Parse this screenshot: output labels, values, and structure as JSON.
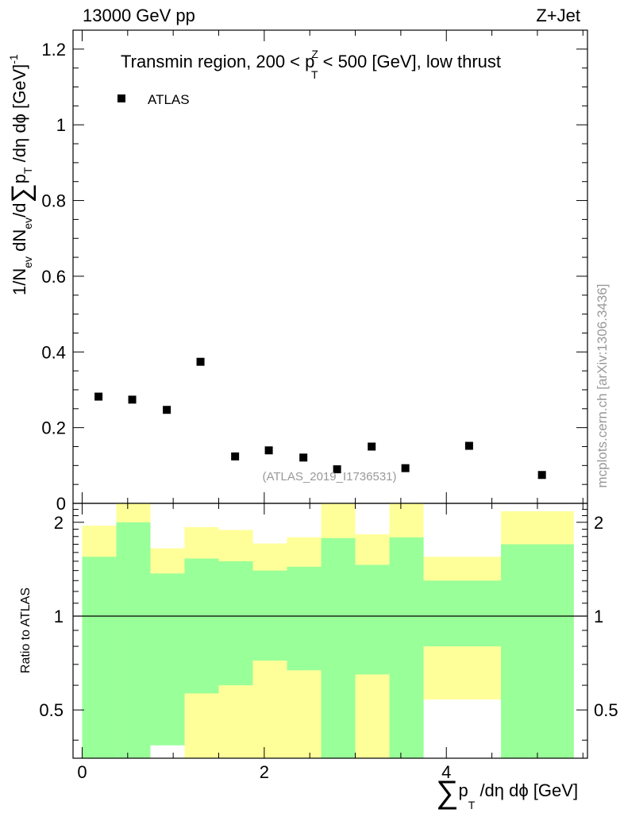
{
  "header": {
    "left": "13000 GeV pp",
    "right": "Z+Jet"
  },
  "watermark": "mcplots.cern.ch [arXiv:1306.3436]",
  "analysis_label": "(ATLAS_2019_I1736531)",
  "colors": {
    "data_marker": "#000000",
    "band_inner": "#99ff99",
    "band_outer": "#ffff99",
    "axis": "#000000",
    "analysis_label": "#999999"
  },
  "chart_data": [
    {
      "type": "scatter",
      "title_parts": {
        "prefix": "Transmin region, 200 < p",
        "sup": "Z",
        "sub": "T",
        "suffix": " < 500 [GeV], low thrust"
      },
      "ylabel_parts": {
        "a": "1/N",
        "a_sub": "ev",
        "b": " dN",
        "b_sub": "ev",
        "c": "/d",
        "sigma": "∑",
        "d": "p",
        "d_sub": "T",
        "e": " /dη dϕ  [GeV]",
        "e_sup": "-1"
      },
      "legend": {
        "entries": [
          "ATLAS"
        ],
        "placement": "top-left"
      },
      "xlim": [
        -0.1,
        5.55
      ],
      "ylim": [
        0,
        1.25
      ],
      "yticks": [
        0,
        0.2,
        0.4,
        0.6,
        0.8,
        1,
        1.2
      ],
      "ytick_labels": [
        "0",
        "0.2",
        "0.4",
        "0.6",
        "0.8",
        "1",
        "1.2"
      ],
      "series": [
        {
          "name": "ATLAS",
          "marker": "square",
          "x": [
            0.18,
            0.55,
            0.93,
            1.3,
            1.68,
            2.05,
            2.43,
            2.8,
            3.18,
            3.55,
            4.25,
            5.05
          ],
          "y": [
            0.282,
            0.274,
            0.247,
            0.374,
            0.124,
            0.14,
            0.121,
            0.09,
            0.15,
            0.093,
            0.152,
            0.075
          ]
        }
      ]
    },
    {
      "type": "area",
      "ylabel": "Ratio to ATLAS",
      "xlim": [
        -0.1,
        5.55
      ],
      "ylim": [
        0.35,
        2.3
      ],
      "yticks": [
        0.5,
        1,
        2
      ],
      "ytick_labels": [
        "0.5",
        "1",
        "2"
      ],
      "xticks": [
        0,
        2,
        4
      ],
      "xtick_labels": [
        "0",
        "2",
        "4"
      ],
      "xlabel_parts": {
        "sigma": "∑",
        "a": "p",
        "a_sub": "T",
        "b": " /dη dϕ [GeV]"
      },
      "reference_line": 1,
      "bins": [
        {
          "lo": 0.0,
          "hi": 0.375,
          "inner": [
            0.35,
            1.55
          ],
          "outer": [
            0.53,
            1.95
          ]
        },
        {
          "lo": 0.375,
          "hi": 0.75,
          "inner": [
            0.35,
            2.0
          ],
          "outer": [
            0.35,
            2.3
          ]
        },
        {
          "lo": 0.75,
          "hi": 1.125,
          "inner": [
            0.385,
            1.37
          ],
          "outer": [
            0.76,
            1.65
          ]
        },
        {
          "lo": 1.125,
          "hi": 1.5,
          "inner": [
            0.565,
            1.53
          ],
          "outer": [
            0.35,
            1.93
          ]
        },
        {
          "lo": 1.5,
          "hi": 1.875,
          "inner": [
            0.6,
            1.5
          ],
          "outer": [
            0.35,
            1.89
          ]
        },
        {
          "lo": 1.875,
          "hi": 2.25,
          "inner": [
            0.72,
            1.4
          ],
          "outer": [
            0.35,
            1.71
          ]
        },
        {
          "lo": 2.25,
          "hi": 2.625,
          "inner": [
            0.67,
            1.44
          ],
          "outer": [
            0.35,
            1.79
          ]
        },
        {
          "lo": 2.625,
          "hi": 3.0,
          "inner": [
            0.35,
            1.78
          ],
          "outer": [
            0.35,
            2.3
          ]
        },
        {
          "lo": 3.0,
          "hi": 3.375,
          "inner": [
            0.65,
            1.46
          ],
          "outer": [
            0.35,
            1.83
          ]
        },
        {
          "lo": 3.375,
          "hi": 3.75,
          "inner": [
            0.35,
            1.79
          ],
          "outer": [
            0.35,
            2.3
          ]
        },
        {
          "lo": 3.75,
          "hi": 4.6,
          "inner": [
            0.8,
            1.3
          ],
          "outer": [
            0.54,
            1.55
          ]
        },
        {
          "lo": 4.6,
          "hi": 5.4,
          "inner": [
            0.35,
            1.7
          ],
          "outer": [
            0.35,
            2.17
          ]
        }
      ]
    }
  ]
}
